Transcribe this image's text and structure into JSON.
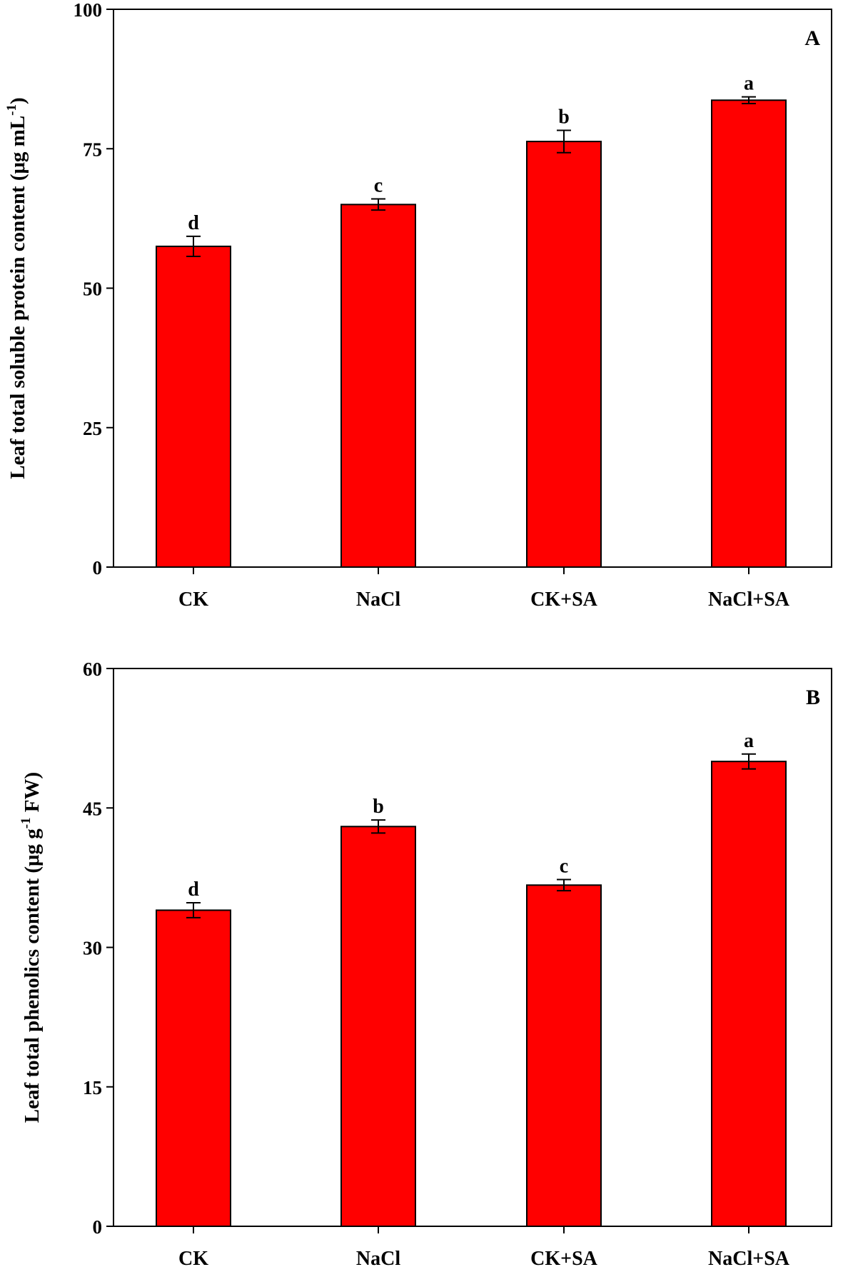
{
  "colors": {
    "bar": "#ff0000",
    "axis": "#000000",
    "background": "#ffffff"
  },
  "chart_data": [
    {
      "type": "bar",
      "panel": "A",
      "categories": [
        "CK",
        "NaCl",
        "CK+SA",
        "NaCl+SA"
      ],
      "values": [
        57.5,
        65.0,
        76.3,
        83.7
      ],
      "errors": [
        1.8,
        1.0,
        2.0,
        0.6
      ],
      "significance": [
        "d",
        "c",
        "b",
        "a"
      ],
      "ylabel_main": "Leaf total soluble protein content (μg mL",
      "ylabel_sup": "-1",
      "ylabel_tail": ")",
      "ylim": [
        0,
        100
      ],
      "yticks": [
        0,
        25,
        50,
        75,
        100
      ],
      "grid": false
    },
    {
      "type": "bar",
      "panel": "B",
      "categories": [
        "CK",
        "NaCl",
        "CK+SA",
        "NaCl+SA"
      ],
      "values": [
        34.0,
        43.0,
        36.7,
        50.0
      ],
      "errors": [
        0.8,
        0.7,
        0.6,
        0.8
      ],
      "significance": [
        "d",
        "b",
        "c",
        "a"
      ],
      "ylabel_main": "Leaf total phenolics content (μg g",
      "ylabel_sup": "-1",
      "ylabel_tail": " FW)",
      "ylim": [
        0,
        60
      ],
      "yticks": [
        0,
        15,
        30,
        45,
        60
      ],
      "grid": false
    }
  ]
}
